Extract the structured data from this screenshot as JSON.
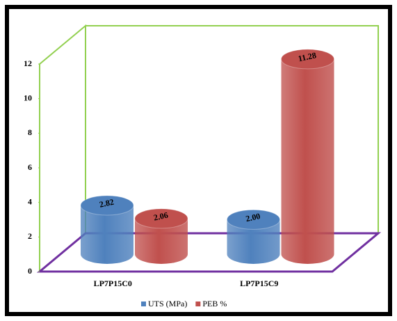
{
  "chart_data": {
    "type": "bar3d",
    "categories": [
      "LP7P15C0",
      "LP7P15C9"
    ],
    "series": [
      {
        "name": "UTS (MPa)",
        "color": "#4f81bd",
        "values": [
          2.82,
          2.0
        ],
        "value_labels": [
          "2.82",
          "2.00"
        ]
      },
      {
        "name": "PEB %",
        "color": "#c0504d",
        "values": [
          2.06,
          11.28
        ],
        "value_labels": [
          "2.06",
          "11.28"
        ]
      }
    ],
    "ylim": [
      0,
      12
    ],
    "yticks": [
      0,
      2,
      4,
      6,
      8,
      10,
      12
    ],
    "wall_color": "#92d050",
    "floor_color": "#7030a0"
  }
}
